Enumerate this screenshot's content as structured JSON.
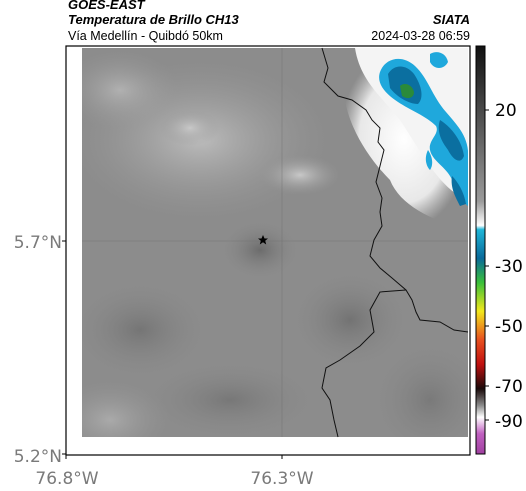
{
  "header": {
    "satellite": "GOES-EAST",
    "product": "Temperatura de Brillo CH13",
    "route": "Vía Medellín - Quibdó 50km",
    "agency": "SIATA",
    "datetime": "2024-03-28 06:59"
  },
  "axes": {
    "lon_ticks": [
      "76.8°W",
      "76.3°W"
    ],
    "lat_ticks": [
      "5.7°N",
      "5.2°N"
    ]
  },
  "colorbar": {
    "ticks": [
      "20",
      "-30",
      "-50",
      "-70",
      "-90"
    ],
    "stops": [
      "#1a1a1a",
      "#8a8a8a",
      "#ffffff",
      "#1fb6d8",
      "#1a8a1a",
      "#f2e81c",
      "#e0401a",
      "#1a0a0a",
      "#ffffff",
      "#b050b0"
    ]
  },
  "marker": {
    "icon": "star-icon"
  }
}
